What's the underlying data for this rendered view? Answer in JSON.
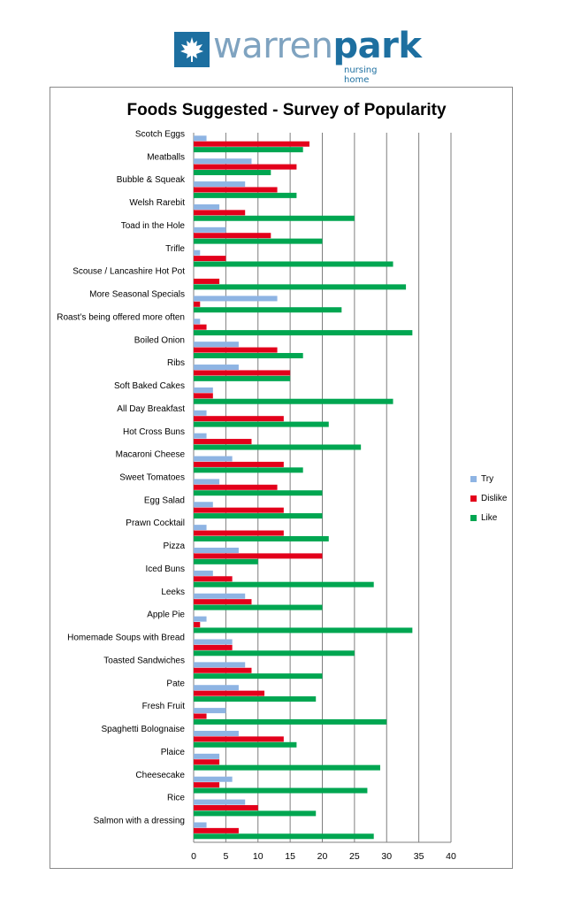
{
  "logo": {
    "word_part1": "warren",
    "word_part2": "park",
    "tagline": "nursing home",
    "icon": "maple-leaf-icon",
    "color": "#1d6fa0"
  },
  "chart_data": {
    "type": "bar",
    "orientation": "horizontal",
    "title": "Foods Suggested - Survey of Popularity",
    "xlim": [
      0,
      40
    ],
    "xticks": [
      0,
      5,
      10,
      15,
      20,
      25,
      30,
      35,
      40
    ],
    "grid": true,
    "legend_position": "right",
    "categories": [
      "Scotch Eggs",
      "Meatballs",
      "Bubble & Squeak",
      "Welsh Rarebit",
      "Toad in the Hole",
      "Trifle",
      "Scouse / Lancashire Hot Pot",
      "More Seasonal Specials",
      "Roast’s being offered more often",
      "Boiled Onion",
      "Ribs",
      "Soft Baked Cakes",
      "All Day Breakfast",
      "Hot Cross Buns",
      "Macaroni Cheese",
      "Sweet Tomatoes",
      "Egg Salad",
      "Prawn Cocktail",
      "Pizza",
      "Iced Buns",
      "Leeks",
      "Apple Pie",
      "Homemade Soups with Bread",
      "Toasted Sandwiches",
      "Pate",
      "Fresh Fruit",
      "Spaghetti Bolognaise",
      "Plaice",
      "Cheesecake",
      "Rice",
      "Salmon with a dressing"
    ],
    "series": [
      {
        "name": "Try",
        "color": "#8eb4e3",
        "values": [
          2,
          9,
          8,
          4,
          5,
          1,
          0,
          13,
          1,
          7,
          7,
          3,
          2,
          2,
          6,
          4,
          3,
          2,
          7,
          3,
          8,
          2,
          6,
          8,
          7,
          5,
          7,
          4,
          6,
          8,
          2
        ]
      },
      {
        "name": "Dislike",
        "color": "#e3001b",
        "values": [
          18,
          16,
          13,
          8,
          12,
          5,
          4,
          1,
          2,
          13,
          15,
          3,
          14,
          9,
          14,
          13,
          14,
          14,
          20,
          6,
          9,
          1,
          6,
          9,
          11,
          2,
          14,
          4,
          4,
          10,
          7
        ]
      },
      {
        "name": "Like",
        "color": "#00a651",
        "values": [
          17,
          12,
          16,
          25,
          20,
          31,
          33,
          23,
          34,
          17,
          15,
          31,
          21,
          26,
          17,
          20,
          20,
          21,
          10,
          28,
          20,
          34,
          25,
          20,
          19,
          30,
          16,
          29,
          27,
          19,
          28
        ]
      }
    ]
  }
}
